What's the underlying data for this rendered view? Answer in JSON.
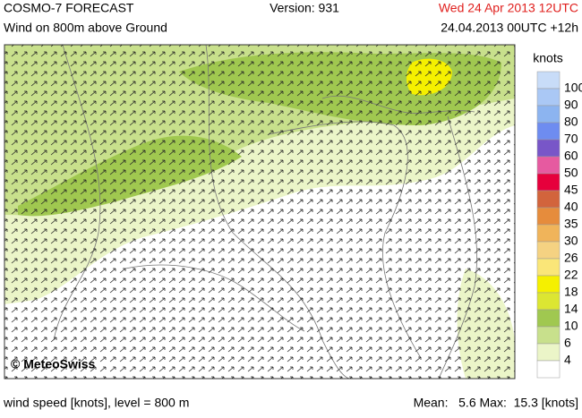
{
  "header": {
    "title": "COSMO-7 FORECAST",
    "version": "Version: 931",
    "valid": "Wed 24 Apr 2013 12UTC",
    "subtitle": "Wind on 800m above Ground",
    "run": "24.04.2013 00UTC +12h"
  },
  "map": {
    "credit": "© MeteoSwiss"
  },
  "legend": {
    "title": "knots",
    "labels": [
      "100",
      "90",
      "80",
      "70",
      "60",
      "50",
      "45",
      "40",
      "35",
      "30",
      "26",
      "22",
      "18",
      "14",
      "10",
      "6",
      "4"
    ],
    "colors": [
      "#c8dcf8",
      "#aac8f5",
      "#8cb4f0",
      "#6e8cf0",
      "#7856c8",
      "#e65aa0",
      "#e6003c",
      "#d2643c",
      "#e68c3c",
      "#f0b45a",
      "#f5d282",
      "#fae678",
      "#f5f000",
      "#dce632",
      "#a0c850",
      "#c8e08c",
      "#ebf5c8",
      "#ffffff"
    ]
  },
  "footer": {
    "description": "wind speed [knots], level = 800 m",
    "stats": "Mean:   5.6 Max:  15.3 [knots]"
  }
}
